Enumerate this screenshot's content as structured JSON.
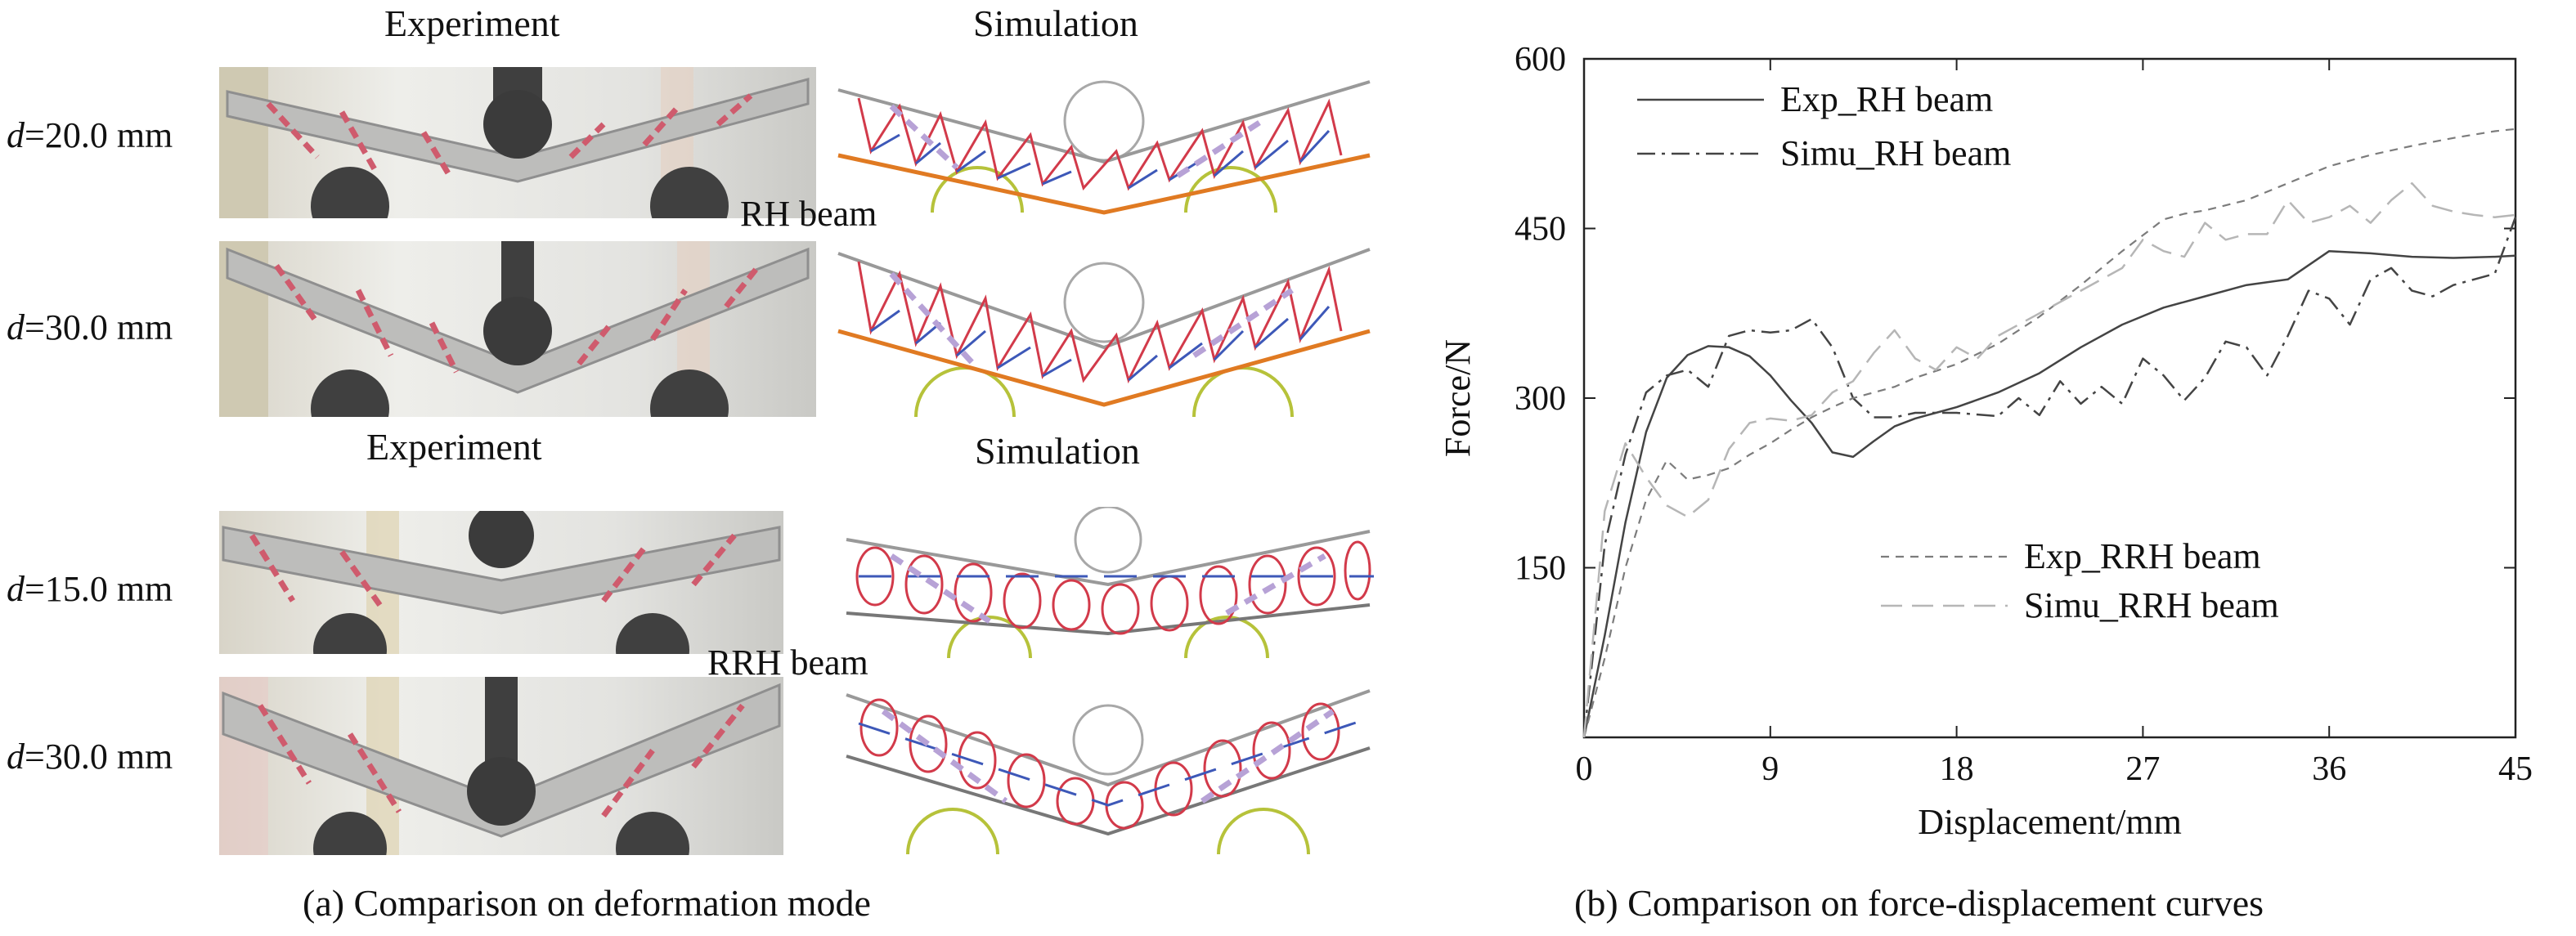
{
  "panel_a": {
    "caption": "(a) Comparison on deformation mode",
    "top_group": {
      "experiment_header": "Experiment",
      "simulation_header": "Simulation",
      "beam_label": "RH beam",
      "rows": [
        {
          "d_symbol": "d",
          "d_value": "=20.0 mm"
        },
        {
          "d_symbol": "d",
          "d_value": "=30.0 mm"
        }
      ]
    },
    "bottom_group": {
      "experiment_header": "Experiment",
      "simulation_header": "Simulation",
      "beam_label": "RRH beam",
      "rows": [
        {
          "d_symbol": "d",
          "d_value": "=15.0 mm"
        },
        {
          "d_symbol": "d",
          "d_value": "=30.0 mm"
        }
      ]
    }
  },
  "panel_b": {
    "caption": "(b) Comparison on force-displacement curves"
  },
  "colors": {
    "exp_rh": "#444444",
    "simu_rh": "#444444",
    "exp_rrh": "#7c7c7c",
    "simu_rrh": "#b6b6b6",
    "cell_red": "#d23a4a",
    "cell_blue": "#3d58b8",
    "face_orange": "#e07a22",
    "support_yellow": "#b6c23a"
  },
  "chart_data": {
    "type": "line",
    "xlabel": "Displacement/mm",
    "ylabel": "Force/N",
    "xlim": [
      0,
      45
    ],
    "ylim": [
      0,
      600
    ],
    "xticks": [
      0,
      9,
      18,
      27,
      36,
      45
    ],
    "yticks": [
      150,
      300,
      450,
      600
    ],
    "legend_top": [
      "Exp_RH beam",
      "Simu_RH beam"
    ],
    "legend_bottom": [
      "Exp_RRH beam",
      "Simu_RRH beam"
    ],
    "series": [
      {
        "name": "Exp_RH beam",
        "style": "solid",
        "x": [
          0,
          1,
          2,
          3,
          4,
          5,
          6,
          7,
          8,
          9,
          10,
          11,
          12,
          13,
          14,
          15,
          16,
          17,
          18,
          20,
          22,
          24,
          26,
          28,
          29,
          30,
          32,
          34,
          36,
          38,
          40,
          42,
          44,
          45
        ],
        "y": [
          0,
          90,
          190,
          270,
          318,
          338,
          346,
          345,
          337,
          320,
          298,
          278,
          252,
          248,
          262,
          275,
          282,
          287,
          292,
          305,
          322,
          345,
          365,
          380,
          385,
          390,
          400,
          405,
          430,
          428,
          425,
          424,
          425,
          426
        ]
      },
      {
        "name": "Simu_RH beam",
        "style": "dashdot",
        "x": [
          0,
          1,
          2,
          3,
          4,
          5,
          6,
          7,
          8,
          9,
          10,
          11,
          12,
          13,
          14,
          15,
          16,
          17,
          18,
          20,
          21,
          22,
          23,
          24,
          25,
          26,
          27,
          28,
          29,
          30,
          31,
          32,
          33,
          34,
          35,
          36,
          37,
          38,
          39,
          40,
          41,
          42,
          43,
          44,
          45
        ],
        "y": [
          0,
          170,
          250,
          305,
          320,
          325,
          310,
          355,
          360,
          358,
          360,
          370,
          345,
          300,
          283,
          283,
          287,
          287,
          287,
          284,
          300,
          285,
          315,
          295,
          310,
          295,
          335,
          320,
          298,
          318,
          350,
          345,
          320,
          355,
          395,
          388,
          365,
          405,
          415,
          395,
          390,
          400,
          405,
          410,
          460
        ]
      },
      {
        "name": "Exp_RRH beam",
        "style": "dashed",
        "x": [
          0,
          1,
          2,
          3,
          4,
          5,
          6,
          7,
          8,
          9,
          10,
          11,
          12,
          13,
          14,
          15,
          16,
          18,
          20,
          22,
          24,
          26,
          28,
          29,
          30,
          32,
          34,
          36,
          38,
          40,
          42,
          44,
          45
        ],
        "y": [
          0,
          70,
          150,
          210,
          245,
          228,
          232,
          238,
          250,
          260,
          272,
          283,
          292,
          300,
          305,
          310,
          318,
          330,
          348,
          372,
          400,
          430,
          458,
          463,
          466,
          475,
          490,
          505,
          515,
          523,
          530,
          536,
          538
        ]
      },
      {
        "name": "Simu_RRH beam",
        "style": "longdash",
        "x": [
          0,
          1,
          2,
          3,
          4,
          5,
          6,
          7,
          8,
          9,
          10,
          11,
          12,
          13,
          14,
          15,
          16,
          17,
          18,
          19,
          20,
          22,
          24,
          26,
          27,
          28,
          29,
          30,
          31,
          32,
          33,
          34,
          35,
          36,
          37,
          38,
          39,
          40,
          41,
          42,
          43,
          44,
          45
        ],
        "y": [
          0,
          200,
          260,
          230,
          205,
          195,
          210,
          255,
          278,
          282,
          280,
          285,
          305,
          315,
          340,
          360,
          335,
          325,
          345,
          335,
          355,
          375,
          395,
          415,
          440,
          430,
          425,
          455,
          440,
          445,
          445,
          475,
          455,
          460,
          470,
          455,
          475,
          490,
          470,
          465,
          462,
          460,
          462
        ]
      }
    ]
  }
}
